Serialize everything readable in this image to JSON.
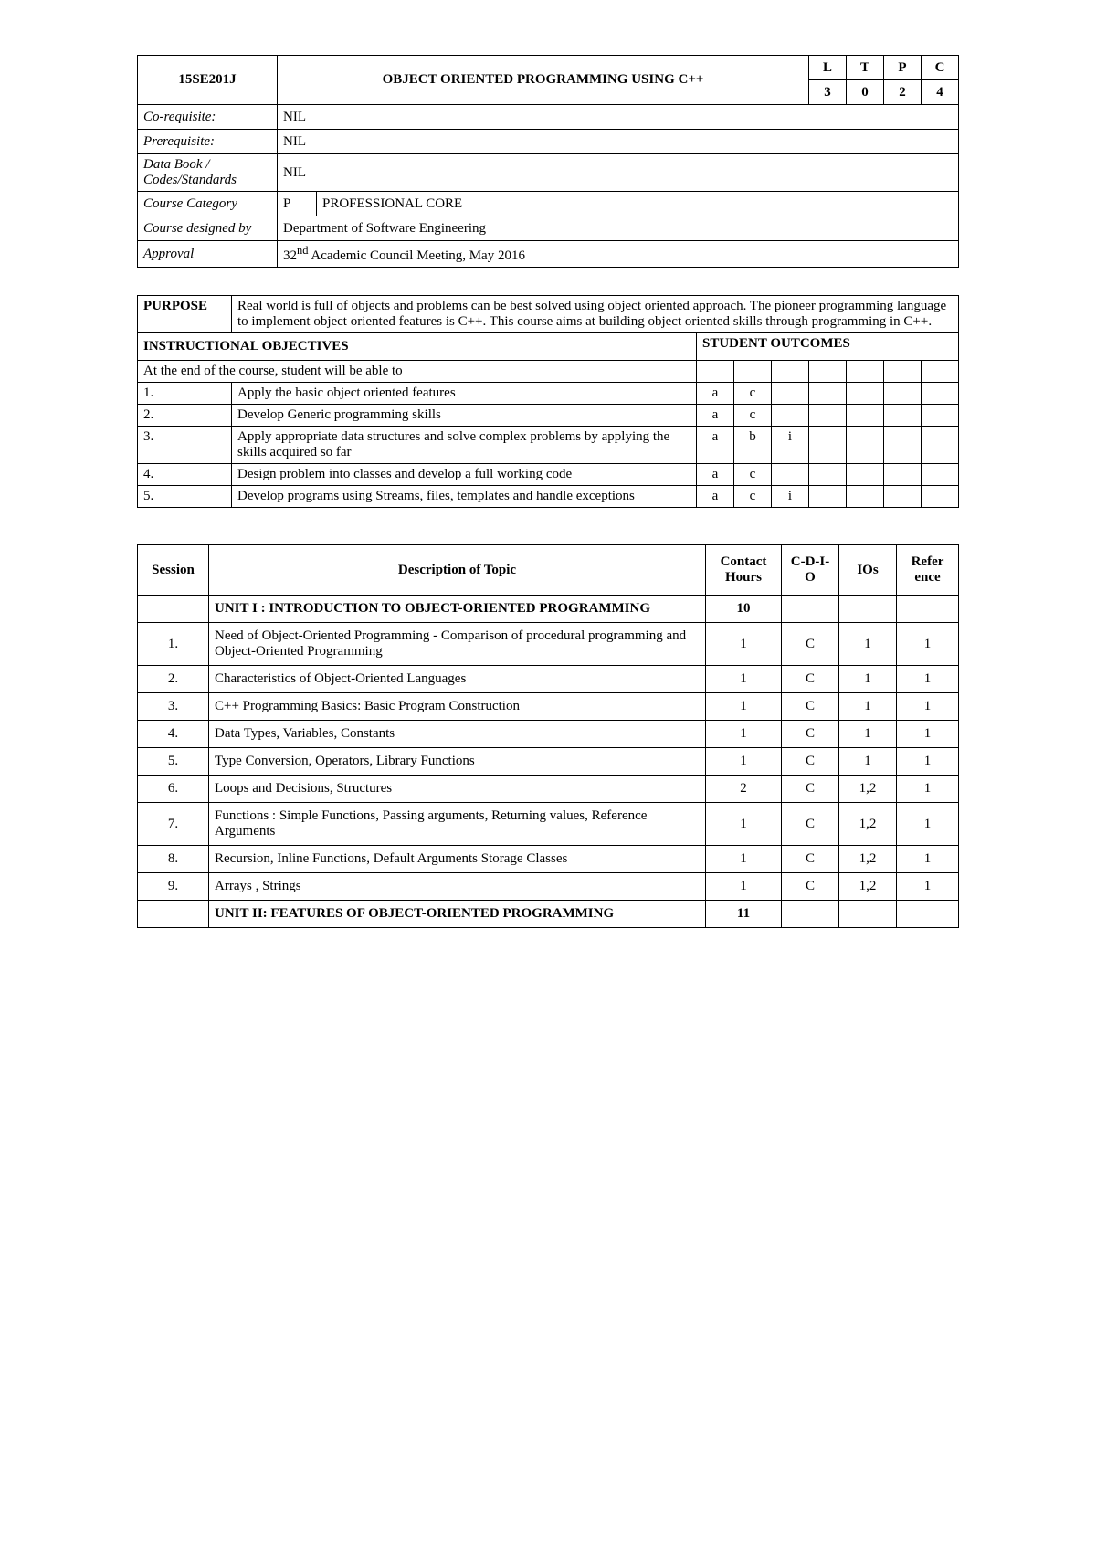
{
  "header": {
    "course_code": "15SE201J",
    "course_title": "OBJECT ORIENTED PROGRAMMING USING C++",
    "ltpc_labels": [
      "L",
      "T",
      "P",
      "C"
    ],
    "ltpc_values": [
      "3",
      "0",
      "2",
      "4"
    ],
    "rows": [
      {
        "label": "Co-requisite:",
        "value": "NIL"
      },
      {
        "label": "Prerequisite:",
        "value": "NIL"
      },
      {
        "label": "Data Book / Codes/Standards",
        "value": "NIL"
      },
      {
        "label": "Course Category",
        "code": "P",
        "value": "PROFESSIONAL CORE"
      },
      {
        "label": "Course designed by",
        "value": "Department of Software Engineering"
      },
      {
        "label": "Approval",
        "value_prefix": "32",
        "value_sup": "nd",
        "value_suffix": " Academic Council Meeting, May 2016"
      }
    ]
  },
  "purpose": {
    "label": "PURPOSE",
    "text": "Real world is full of objects and problems can be best solved using object oriented approach.  The pioneer programming language to implement object oriented features is C++.  This course aims at building object oriented skills through programming in C++.",
    "instructional_label": "INSTRUCTIONAL OBJECTIVES",
    "student_outcomes_label": "STUDENT OUTCOMES",
    "intro": "At the end of the course, student will be able to",
    "objectives": [
      {
        "num": "1.",
        "text": "Apply the basic object oriented features",
        "outs": [
          "a",
          "c",
          "",
          "",
          "",
          "",
          ""
        ]
      },
      {
        "num": "2.",
        "text": "Develop Generic programming skills",
        "outs": [
          "a",
          "c",
          "",
          "",
          "",
          "",
          ""
        ]
      },
      {
        "num": "3.",
        "text": "Apply appropriate data structures and solve complex problems by applying the skills acquired so far",
        "outs": [
          "a",
          "b",
          "i",
          "",
          "",
          "",
          ""
        ]
      },
      {
        "num": "4.",
        "text": "Design problem into classes and develop a full working code",
        "outs": [
          "a",
          "c",
          "",
          "",
          "",
          "",
          ""
        ]
      },
      {
        "num": "5.",
        "text": "Develop programs using Streams, files, templates and handle exceptions",
        "outs": [
          "a",
          "c",
          "i",
          "",
          "",
          "",
          ""
        ]
      }
    ]
  },
  "sessions": {
    "headers": {
      "session": "Session",
      "desc": "Description of Topic",
      "hours": "Contact Hours",
      "cdio": "C-D-I-O",
      "ios": "IOs",
      "ref": "Refer ence"
    },
    "rows": [
      {
        "session": "",
        "desc": "UNIT I : INTRODUCTION TO OBJECT-ORIENTED PROGRAMMING",
        "hours": "10",
        "cdio": "",
        "ios": "",
        "ref": "",
        "bold": true
      },
      {
        "session": "1.",
        "desc": "Need of Object-Oriented Programming - Comparison of procedural programming and Object-Oriented Programming",
        "hours": "1",
        "cdio": "C",
        "ios": "1",
        "ref": "1"
      },
      {
        "session": "2.",
        "desc": "Characteristics of Object-Oriented Languages",
        "hours": "1",
        "cdio": "C",
        "ios": "1",
        "ref": "1"
      },
      {
        "session": "3.",
        "desc": "C++ Programming Basics: Basic Program Construction",
        "hours": "1",
        "cdio": "C",
        "ios": "1",
        "ref": "1"
      },
      {
        "session": "4.",
        "desc": "Data Types, Variables, Constants",
        "hours": "1",
        "cdio": "C",
        "ios": "1",
        "ref": "1"
      },
      {
        "session": "5.",
        "desc": "Type Conversion, Operators, Library Functions",
        "hours": "1",
        "cdio": "C",
        "ios": "1",
        "ref": "1"
      },
      {
        "session": "6.",
        "desc": "Loops and Decisions, Structures",
        "hours": "2",
        "cdio": "C",
        "ios": "1,2",
        "ref": "1"
      },
      {
        "session": "7.",
        "desc": "Functions : Simple Functions, Passing arguments, Returning values, Reference Arguments",
        "hours": "1",
        "cdio": "C",
        "ios": "1,2",
        "ref": "1"
      },
      {
        "session": "8.",
        "desc": "Recursion, Inline Functions, Default Arguments Storage Classes",
        "hours": "1",
        "cdio": "C",
        "ios": "1,2",
        "ref": "1"
      },
      {
        "session": "9.",
        "desc": "Arrays , Strings",
        "hours": "1",
        "cdio": "C",
        "ios": "1,2",
        "ref": "1"
      },
      {
        "session": "",
        "desc": "UNIT II: FEATURES OF OBJECT-ORIENTED PROGRAMMING",
        "hours": "11",
        "cdio": "",
        "ios": "",
        "ref": "",
        "bold": true
      }
    ]
  }
}
